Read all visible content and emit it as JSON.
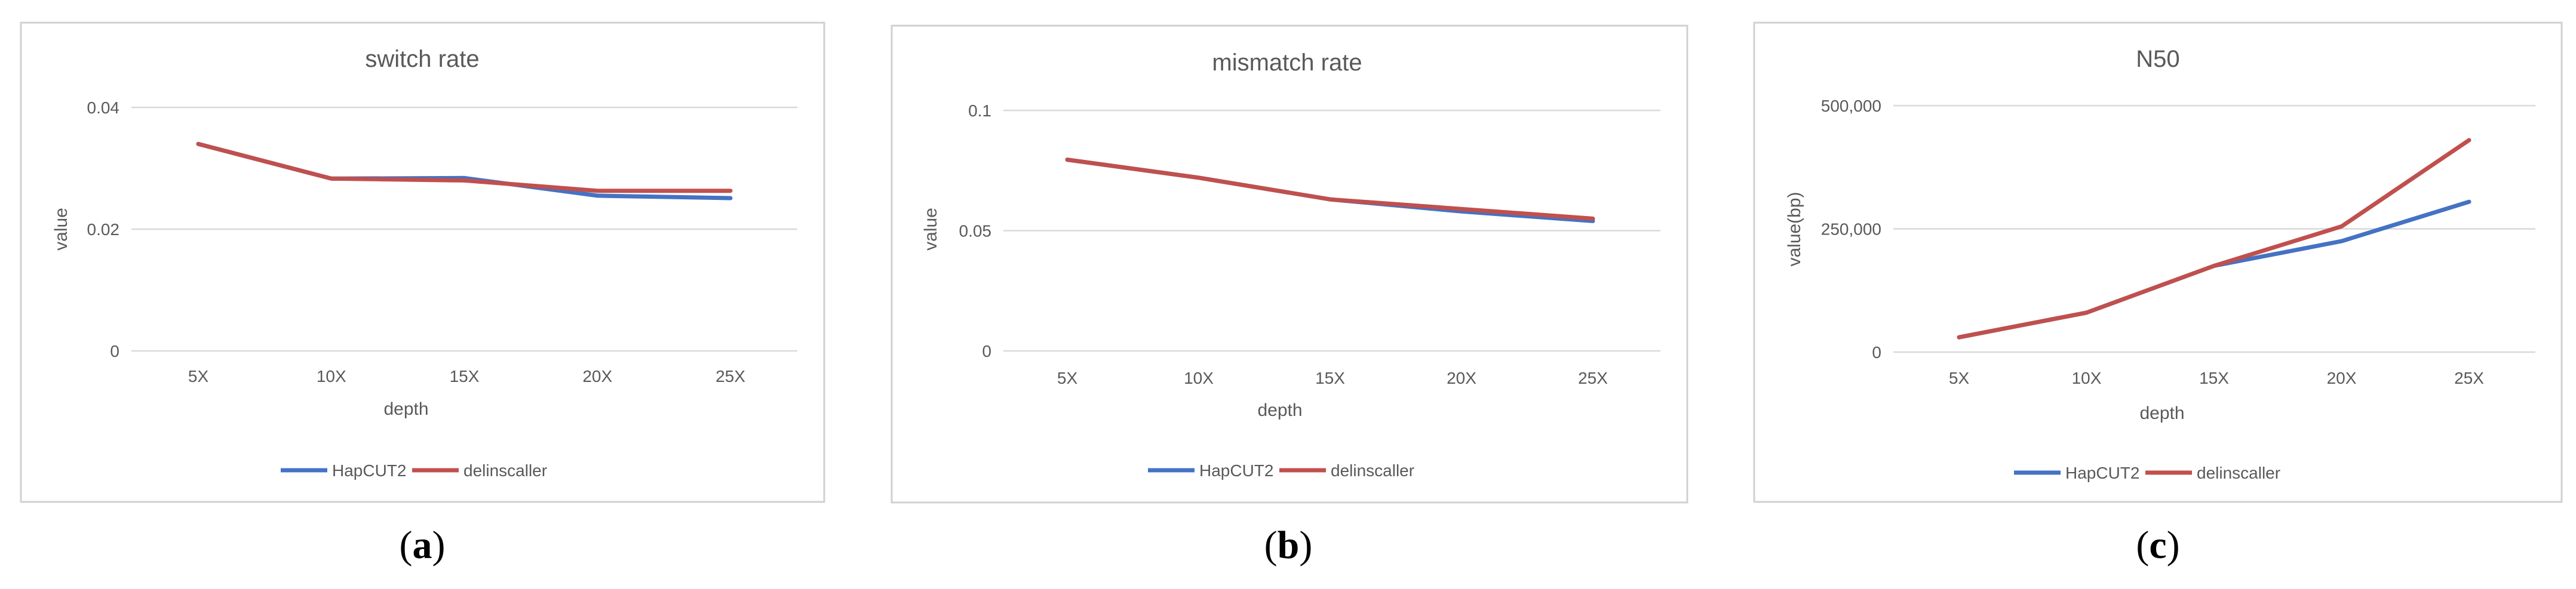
{
  "colors": {
    "hapcut2": "#4472C4",
    "delinscaller": "#C0504D",
    "grid": "#D9D9D9",
    "frame": "#D0D0D0",
    "text": "#595959"
  },
  "captions": [
    {
      "open": "(",
      "letter": "a",
      "close": ")"
    },
    {
      "open": "(",
      "letter": "b",
      "close": ")"
    },
    {
      "open": "(",
      "letter": "c",
      "close": ")"
    }
  ],
  "chart_data": [
    {
      "type": "line",
      "title": "switch rate",
      "xlabel": "depth",
      "ylabel": "value",
      "categories": [
        "5X",
        "10X",
        "15X",
        "20X",
        "25X"
      ],
      "ylim": [
        0,
        0.04
      ],
      "yticks": [
        0,
        0.02,
        0.04
      ],
      "ytick_labels": [
        "0",
        "0.02",
        "0.04"
      ],
      "series": [
        {
          "name": "HapCUT2",
          "values": [
            0.034,
            0.0283,
            0.0284,
            0.0255,
            0.0251
          ]
        },
        {
          "name": "delinscaller",
          "values": [
            0.034,
            0.0283,
            0.028,
            0.0263,
            0.0263
          ]
        }
      ],
      "legend": "bottom"
    },
    {
      "type": "line",
      "title": "mismatch rate",
      "xlabel": "depth",
      "ylabel": "value",
      "categories": [
        "5X",
        "10X",
        "15X",
        "20X",
        "25X"
      ],
      "ylim": [
        0,
        0.1
      ],
      "yticks": [
        0,
        0.05,
        0.1
      ],
      "ytick_labels": [
        "0",
        "0.05",
        "0.1"
      ],
      "series": [
        {
          "name": "HapCUT2",
          "values": [
            0.0795,
            0.072,
            0.063,
            0.058,
            0.054
          ]
        },
        {
          "name": "delinscaller",
          "values": [
            0.0795,
            0.072,
            0.063,
            0.059,
            0.055
          ]
        }
      ],
      "legend": "bottom"
    },
    {
      "type": "line",
      "title": "N50",
      "xlabel": "depth",
      "ylabel": "value(bp)",
      "categories": [
        "5X",
        "10X",
        "15X",
        "20X",
        "25X"
      ],
      "ylim": [
        0,
        500000
      ],
      "yticks": [
        0,
        250000,
        500000
      ],
      "ytick_labels": [
        "0",
        "250,000",
        "500,000"
      ],
      "series": [
        {
          "name": "HapCUT2",
          "values": [
            30000,
            80000,
            175000,
            225000,
            305000
          ]
        },
        {
          "name": "delinscaller",
          "values": [
            30000,
            80000,
            175000,
            255000,
            430000
          ]
        }
      ],
      "legend": "bottom"
    }
  ]
}
